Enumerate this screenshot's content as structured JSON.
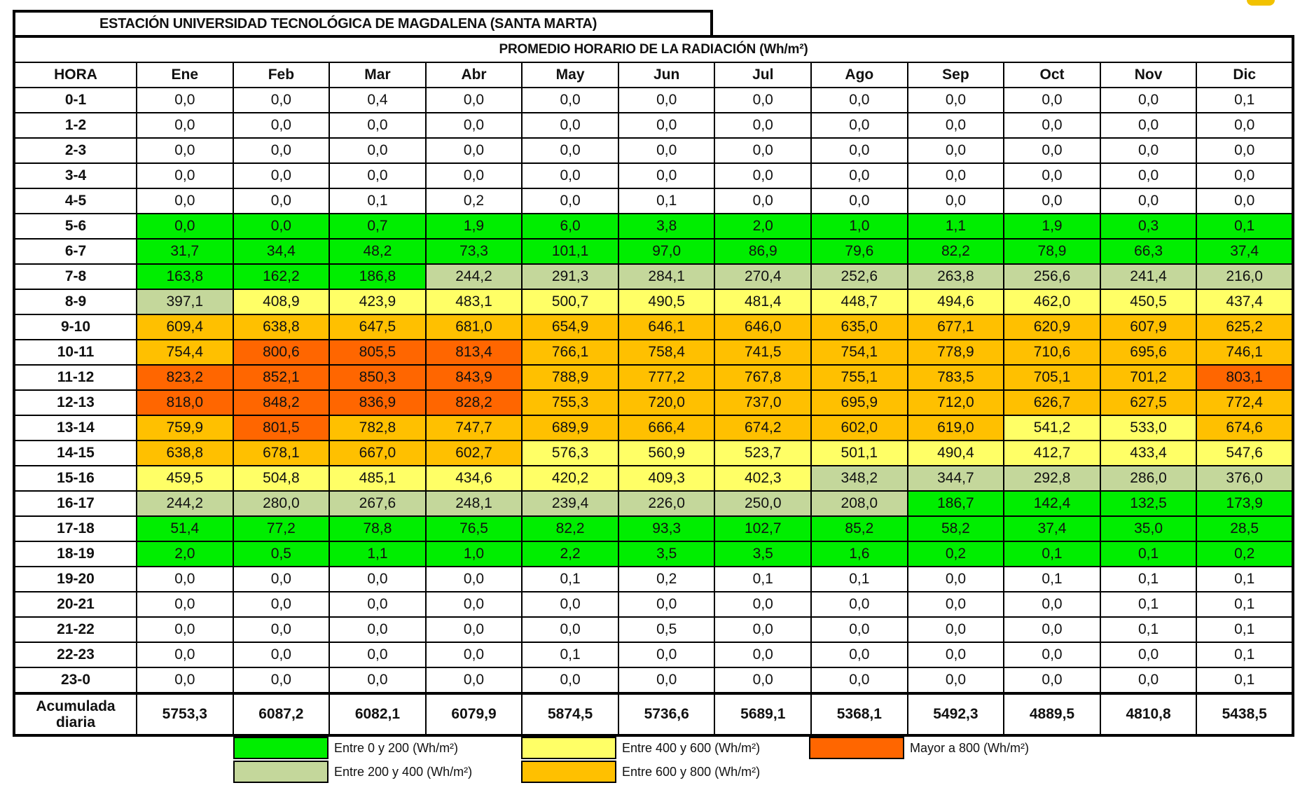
{
  "station_title": "ESTACIÓN UNIVERSIDAD TECNOLÓGICA DE MAGDALENA (SANTA MARTA)",
  "table_subtitle": "PROMEDIO HORARIO DE LA RADIACIÓN (Wh/m²)",
  "colors": {
    "none": "#ffffff",
    "green": "#00ee00",
    "olive": "#c4d79b",
    "yellow": "#ffff66",
    "amber": "#ffc000",
    "red": "#ff6600"
  },
  "chart_data": {
    "type": "table",
    "row_header": "HORA",
    "columns": [
      "Ene",
      "Feb",
      "Mar",
      "Abr",
      "May",
      "Jun",
      "Jul",
      "Ago",
      "Sep",
      "Oct",
      "Nov",
      "Dic"
    ],
    "rows": [
      {
        "hour": "0-1",
        "values": [
          "0,0",
          "0,0",
          "0,4",
          "0,0",
          "0,0",
          "0,0",
          "0,0",
          "0,0",
          "0,0",
          "0,0",
          "0,0",
          "0,1"
        ],
        "bands": [
          "none",
          "none",
          "none",
          "none",
          "none",
          "none",
          "none",
          "none",
          "none",
          "none",
          "none",
          "none"
        ]
      },
      {
        "hour": "1-2",
        "values": [
          "0,0",
          "0,0",
          "0,0",
          "0,0",
          "0,0",
          "0,0",
          "0,0",
          "0,0",
          "0,0",
          "0,0",
          "0,0",
          "0,0"
        ],
        "bands": [
          "none",
          "none",
          "none",
          "none",
          "none",
          "none",
          "none",
          "none",
          "none",
          "none",
          "none",
          "none"
        ]
      },
      {
        "hour": "2-3",
        "values": [
          "0,0",
          "0,0",
          "0,0",
          "0,0",
          "0,0",
          "0,0",
          "0,0",
          "0,0",
          "0,0",
          "0,0",
          "0,0",
          "0,0"
        ],
        "bands": [
          "none",
          "none",
          "none",
          "none",
          "none",
          "none",
          "none",
          "none",
          "none",
          "none",
          "none",
          "none"
        ]
      },
      {
        "hour": "3-4",
        "values": [
          "0,0",
          "0,0",
          "0,0",
          "0,0",
          "0,0",
          "0,0",
          "0,0",
          "0,0",
          "0,0",
          "0,0",
          "0,0",
          "0,0"
        ],
        "bands": [
          "none",
          "none",
          "none",
          "none",
          "none",
          "none",
          "none",
          "none",
          "none",
          "none",
          "none",
          "none"
        ]
      },
      {
        "hour": "4-5",
        "values": [
          "0,0",
          "0,0",
          "0,1",
          "0,2",
          "0,0",
          "0,1",
          "0,0",
          "0,0",
          "0,0",
          "0,0",
          "0,0",
          "0,0"
        ],
        "bands": [
          "none",
          "none",
          "none",
          "none",
          "none",
          "none",
          "none",
          "none",
          "none",
          "none",
          "none",
          "none"
        ]
      },
      {
        "hour": "5-6",
        "values": [
          "0,0",
          "0,0",
          "0,7",
          "1,9",
          "6,0",
          "3,8",
          "2,0",
          "1,0",
          "1,1",
          "1,9",
          "0,3",
          "0,1"
        ],
        "bands": [
          "green",
          "green",
          "green",
          "green",
          "green",
          "green",
          "green",
          "green",
          "green",
          "green",
          "green",
          "green"
        ]
      },
      {
        "hour": "6-7",
        "values": [
          "31,7",
          "34,4",
          "48,2",
          "73,3",
          "101,1",
          "97,0",
          "86,9",
          "79,6",
          "82,2",
          "78,9",
          "66,3",
          "37,4"
        ],
        "bands": [
          "green",
          "green",
          "green",
          "green",
          "green",
          "green",
          "green",
          "green",
          "green",
          "green",
          "green",
          "green"
        ]
      },
      {
        "hour": "7-8",
        "values": [
          "163,8",
          "162,2",
          "186,8",
          "244,2",
          "291,3",
          "284,1",
          "270,4",
          "252,6",
          "263,8",
          "256,6",
          "241,4",
          "216,0"
        ],
        "bands": [
          "green",
          "green",
          "green",
          "olive",
          "olive",
          "olive",
          "olive",
          "olive",
          "olive",
          "olive",
          "olive",
          "olive"
        ]
      },
      {
        "hour": "8-9",
        "values": [
          "397,1",
          "408,9",
          "423,9",
          "483,1",
          "500,7",
          "490,5",
          "481,4",
          "448,7",
          "494,6",
          "462,0",
          "450,5",
          "437,4"
        ],
        "bands": [
          "olive",
          "yellow",
          "yellow",
          "yellow",
          "yellow",
          "yellow",
          "yellow",
          "yellow",
          "yellow",
          "yellow",
          "yellow",
          "yellow"
        ]
      },
      {
        "hour": "9-10",
        "values": [
          "609,4",
          "638,8",
          "647,5",
          "681,0",
          "654,9",
          "646,1",
          "646,0",
          "635,0",
          "677,1",
          "620,9",
          "607,9",
          "625,2"
        ],
        "bands": [
          "amber",
          "amber",
          "amber",
          "amber",
          "amber",
          "amber",
          "amber",
          "amber",
          "amber",
          "amber",
          "amber",
          "amber"
        ]
      },
      {
        "hour": "10-11",
        "values": [
          "754,4",
          "800,6",
          "805,5",
          "813,4",
          "766,1",
          "758,4",
          "741,5",
          "754,1",
          "778,9",
          "710,6",
          "695,6",
          "746,1"
        ],
        "bands": [
          "amber",
          "red",
          "red",
          "red",
          "amber",
          "amber",
          "amber",
          "amber",
          "amber",
          "amber",
          "amber",
          "amber"
        ]
      },
      {
        "hour": "11-12",
        "values": [
          "823,2",
          "852,1",
          "850,3",
          "843,9",
          "788,9",
          "777,2",
          "767,8",
          "755,1",
          "783,5",
          "705,1",
          "701,2",
          "803,1"
        ],
        "bands": [
          "red",
          "red",
          "red",
          "red",
          "amber",
          "amber",
          "amber",
          "amber",
          "amber",
          "amber",
          "amber",
          "red"
        ]
      },
      {
        "hour": "12-13",
        "values": [
          "818,0",
          "848,2",
          "836,9",
          "828,2",
          "755,3",
          "720,0",
          "737,0",
          "695,9",
          "712,0",
          "626,7",
          "627,5",
          "772,4"
        ],
        "bands": [
          "red",
          "red",
          "red",
          "red",
          "amber",
          "amber",
          "amber",
          "amber",
          "amber",
          "amber",
          "amber",
          "amber"
        ]
      },
      {
        "hour": "13-14",
        "values": [
          "759,9",
          "801,5",
          "782,8",
          "747,7",
          "689,9",
          "666,4",
          "674,2",
          "602,0",
          "619,0",
          "541,2",
          "533,0",
          "674,6"
        ],
        "bands": [
          "amber",
          "red",
          "amber",
          "amber",
          "amber",
          "amber",
          "amber",
          "amber",
          "amber",
          "yellow",
          "yellow",
          "amber"
        ]
      },
      {
        "hour": "14-15",
        "values": [
          "638,8",
          "678,1",
          "667,0",
          "602,7",
          "576,3",
          "560,9",
          "523,7",
          "501,1",
          "490,4",
          "412,7",
          "433,4",
          "547,6"
        ],
        "bands": [
          "amber",
          "amber",
          "amber",
          "amber",
          "yellow",
          "yellow",
          "yellow",
          "yellow",
          "yellow",
          "yellow",
          "yellow",
          "yellow"
        ]
      },
      {
        "hour": "15-16",
        "values": [
          "459,5",
          "504,8",
          "485,1",
          "434,6",
          "420,2",
          "409,3",
          "402,3",
          "348,2",
          "344,7",
          "292,8",
          "286,0",
          "376,0"
        ],
        "bands": [
          "yellow",
          "yellow",
          "yellow",
          "yellow",
          "yellow",
          "yellow",
          "yellow",
          "olive",
          "olive",
          "olive",
          "olive",
          "olive"
        ]
      },
      {
        "hour": "16-17",
        "values": [
          "244,2",
          "280,0",
          "267,6",
          "248,1",
          "239,4",
          "226,0",
          "250,0",
          "208,0",
          "186,7",
          "142,4",
          "132,5",
          "173,9"
        ],
        "bands": [
          "olive",
          "olive",
          "olive",
          "olive",
          "olive",
          "olive",
          "olive",
          "olive",
          "green",
          "green",
          "green",
          "green"
        ]
      },
      {
        "hour": "17-18",
        "values": [
          "51,4",
          "77,2",
          "78,8",
          "76,5",
          "82,2",
          "93,3",
          "102,7",
          "85,2",
          "58,2",
          "37,4",
          "35,0",
          "28,5"
        ],
        "bands": [
          "green",
          "green",
          "green",
          "green",
          "green",
          "green",
          "green",
          "green",
          "green",
          "green",
          "green",
          "green"
        ]
      },
      {
        "hour": "18-19",
        "values": [
          "2,0",
          "0,5",
          "1,1",
          "1,0",
          "2,2",
          "3,5",
          "3,5",
          "1,6",
          "0,2",
          "0,1",
          "0,1",
          "0,2"
        ],
        "bands": [
          "green",
          "green",
          "green",
          "green",
          "green",
          "green",
          "green",
          "green",
          "green",
          "green",
          "green",
          "green"
        ]
      },
      {
        "hour": "19-20",
        "values": [
          "0,0",
          "0,0",
          "0,0",
          "0,0",
          "0,1",
          "0,2",
          "0,1",
          "0,1",
          "0,0",
          "0,1",
          "0,1",
          "0,1"
        ],
        "bands": [
          "none",
          "none",
          "none",
          "none",
          "none",
          "none",
          "none",
          "none",
          "none",
          "none",
          "none",
          "none"
        ]
      },
      {
        "hour": "20-21",
        "values": [
          "0,0",
          "0,0",
          "0,0",
          "0,0",
          "0,0",
          "0,0",
          "0,0",
          "0,0",
          "0,0",
          "0,0",
          "0,1",
          "0,1"
        ],
        "bands": [
          "none",
          "none",
          "none",
          "none",
          "none",
          "none",
          "none",
          "none",
          "none",
          "none",
          "none",
          "none"
        ]
      },
      {
        "hour": "21-22",
        "values": [
          "0,0",
          "0,0",
          "0,0",
          "0,0",
          "0,0",
          "0,5",
          "0,0",
          "0,0",
          "0,0",
          "0,0",
          "0,1",
          "0,1"
        ],
        "bands": [
          "none",
          "none",
          "none",
          "none",
          "none",
          "none",
          "none",
          "none",
          "none",
          "none",
          "none",
          "none"
        ]
      },
      {
        "hour": "22-23",
        "values": [
          "0,0",
          "0,0",
          "0,0",
          "0,0",
          "0,1",
          "0,0",
          "0,0",
          "0,0",
          "0,0",
          "0,0",
          "0,0",
          "0,1"
        ],
        "bands": [
          "none",
          "none",
          "none",
          "none",
          "none",
          "none",
          "none",
          "none",
          "none",
          "none",
          "none",
          "none"
        ]
      },
      {
        "hour": "23-0",
        "values": [
          "0,0",
          "0,0",
          "0,0",
          "0,0",
          "0,0",
          "0,0",
          "0,0",
          "0,0",
          "0,0",
          "0,0",
          "0,0",
          "0,1"
        ],
        "bands": [
          "none",
          "none",
          "none",
          "none",
          "none",
          "none",
          "none",
          "none",
          "none",
          "none",
          "none",
          "none"
        ]
      }
    ],
    "totals_label": "Acumulada diaria",
    "totals": [
      "5753,3",
      "6087,2",
      "6082,1",
      "6079,9",
      "5874,5",
      "5736,6",
      "5689,1",
      "5368,1",
      "5492,3",
      "4889,5",
      "4810,8",
      "5438,5"
    ]
  },
  "legend": [
    {
      "band": "green",
      "label": "Entre 0 y 200 (Wh/m²)"
    },
    {
      "band": "olive",
      "label": "Entre 200 y 400 (Wh/m²)"
    },
    {
      "band": "yellow",
      "label": "Entre 400 y 600 (Wh/m²)"
    },
    {
      "band": "amber",
      "label": "Entre 600 y 800 (Wh/m²)"
    },
    {
      "band": "red",
      "label": "Mayor a 800 (Wh/m²)"
    }
  ]
}
